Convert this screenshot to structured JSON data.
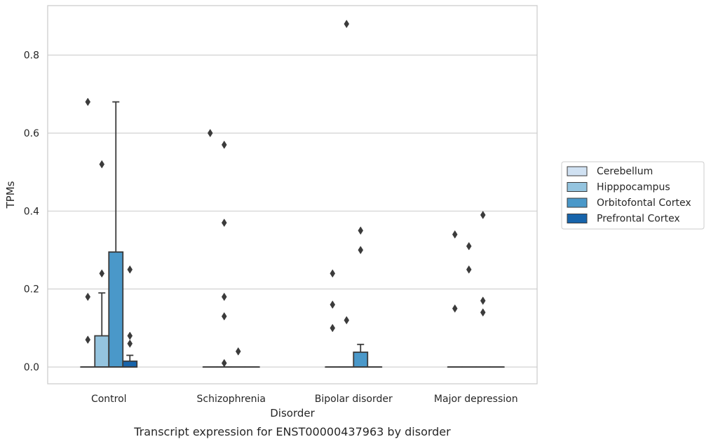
{
  "chart_data": {
    "type": "box",
    "title": "",
    "xlabel": "Disorder",
    "ylabel": "TPMs",
    "caption": "Transcript expression for ENST00000437963 by disorder",
    "ylim": [
      -0.043,
      0.927
    ],
    "yticks": [
      "0.0",
      "0.2",
      "0.4",
      "0.6",
      "0.8"
    ],
    "ytick_values": [
      0.0,
      0.2,
      0.4,
      0.6,
      0.8
    ],
    "grid": "horizontal",
    "legend_position": "right",
    "categories": [
      "Control",
      "Schizophrenia",
      "Bipolar disorder",
      "Major depression"
    ],
    "series": [
      {
        "name": "Cerebellum",
        "color": "#d0e1f2",
        "boxes": [
          {
            "q1": 0,
            "median": 0,
            "q3": 0,
            "whisker_low": 0,
            "whisker_high": 0,
            "outliers": [
              0.68,
              0.18,
              0.07
            ]
          },
          {
            "q1": 0,
            "median": 0,
            "q3": 0,
            "whisker_low": 0,
            "whisker_high": 0,
            "outliers": [
              0.6
            ]
          },
          {
            "q1": 0,
            "median": 0,
            "q3": 0,
            "whisker_low": 0,
            "whisker_high": 0,
            "outliers": [
              0.24,
              0.16,
              0.1
            ]
          },
          {
            "q1": 0,
            "median": 0,
            "q3": 0,
            "whisker_low": 0,
            "whisker_high": 0,
            "outliers": [
              0.34,
              0.15
            ]
          }
        ]
      },
      {
        "name": "Hipppocampus",
        "color": "#94c4df",
        "boxes": [
          {
            "q1": 0,
            "median": 0,
            "q3": 0.08,
            "whisker_low": 0,
            "whisker_high": 0.19,
            "outliers": [
              0.52,
              0.24
            ]
          },
          {
            "q1": 0,
            "median": 0,
            "q3": 0,
            "whisker_low": 0,
            "whisker_high": 0,
            "outliers": [
              0.57,
              0.37,
              0.18,
              0.13,
              0.01
            ]
          },
          {
            "q1": 0,
            "median": 0,
            "q3": 0,
            "whisker_low": 0,
            "whisker_high": 0,
            "outliers": [
              0.88,
              0.12
            ]
          },
          {
            "q1": 0,
            "median": 0,
            "q3": 0,
            "whisker_low": 0,
            "whisker_high": 0,
            "outliers": [
              0.31,
              0.25
            ]
          }
        ]
      },
      {
        "name": "Orbitofontal Cortex",
        "color": "#4a98c9",
        "boxes": [
          {
            "q1": 0,
            "median": 0,
            "q3": 0.295,
            "whisker_low": 0,
            "whisker_high": 0.68,
            "outliers": []
          },
          {
            "q1": 0,
            "median": 0,
            "q3": 0,
            "whisker_low": 0,
            "whisker_high": 0,
            "outliers": [
              0.04
            ]
          },
          {
            "q1": 0,
            "median": 0,
            "q3": 0.038,
            "whisker_low": 0,
            "whisker_high": 0.058,
            "outliers": [
              0.35,
              0.3
            ]
          },
          {
            "q1": 0,
            "median": 0,
            "q3": 0,
            "whisker_low": 0,
            "whisker_high": 0,
            "outliers": [
              0.39,
              0.17,
              0.14
            ]
          }
        ]
      },
      {
        "name": "Prefrontal Cortex",
        "color": "#1764ab",
        "boxes": [
          {
            "q1": 0,
            "median": 0,
            "q3": 0.015,
            "whisker_low": 0,
            "whisker_high": 0.03,
            "outliers": [
              0.25,
              0.08,
              0.06
            ]
          },
          {
            "q1": 0,
            "median": 0,
            "q3": 0,
            "whisker_low": 0,
            "whisker_high": 0,
            "outliers": []
          },
          {
            "q1": 0,
            "median": 0,
            "q3": 0,
            "whisker_low": 0,
            "whisker_high": 0,
            "outliers": []
          },
          {
            "q1": 0,
            "median": 0,
            "q3": 0,
            "whisker_low": 0,
            "whisker_high": 0,
            "outliers": []
          }
        ]
      }
    ]
  }
}
